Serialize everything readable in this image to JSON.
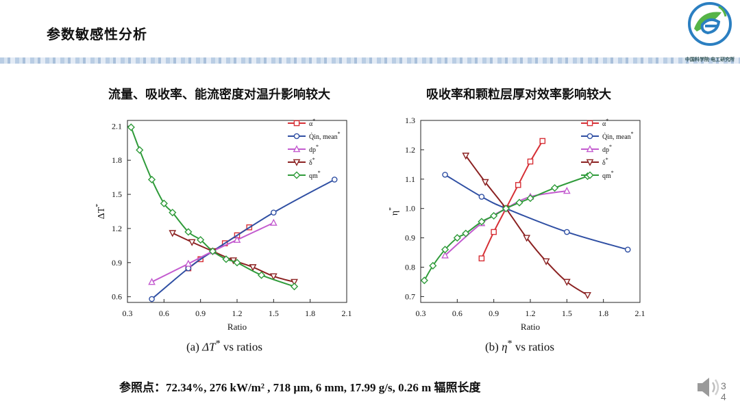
{
  "slide": {
    "title": "参数敏感性分析",
    "org": "中国科学院·电工研究所",
    "left_subtitle": "流量、吸收率、能流密度对温升影响较大",
    "right_subtitle": "吸收率和颗粒层厚对效率影响较大",
    "reference": "参照点：72.34%, 276 kW/m² , 718 μm, 6 mm, 17.99 g/s, 0.26 m  辐照长度",
    "page_top": "3",
    "page_bottom": "4"
  },
  "colors": {
    "alpha": "#d62f35",
    "Q": "#2f4fa3",
    "dp": "#c35bcf",
    "delta": "#8b2121",
    "qm": "#2f9b3a"
  },
  "legend_labels": [
    "α",
    "Q̇in, mean",
    "dp",
    "δ",
    "qm"
  ],
  "chart_data": [
    {
      "type": "line",
      "caption_prefix": "(a)  ",
      "caption_symbol": "ΔT",
      "caption_suffix": "  vs ratios",
      "xlabel": "Ratio",
      "ylabel": "ΔT",
      "xlim": [
        0.3,
        2.1
      ],
      "ylim": [
        0.55,
        2.15
      ],
      "xticks": [
        "0.3",
        "0.6",
        "0.9",
        "1.2",
        "1.5",
        "1.8",
        "2.1"
      ],
      "yticks": [
        "0.6",
        "0.9",
        "1.2",
        "1.5",
        "1.8",
        "2.1"
      ],
      "legend_position": "top-right",
      "series": [
        {
          "key": "alpha",
          "marker": "square",
          "x": [
            0.8,
            0.9,
            1.0,
            1.1,
            1.2,
            1.3
          ],
          "y": [
            0.85,
            0.93,
            1.0,
            1.07,
            1.14,
            1.21
          ]
        },
        {
          "key": "Q",
          "marker": "circle",
          "x": [
            0.5,
            0.8,
            1.0,
            1.5,
            2.0
          ],
          "y": [
            0.58,
            0.85,
            1.0,
            1.34,
            1.63
          ]
        },
        {
          "key": "dp",
          "marker": "triangle-up",
          "x": [
            0.5,
            0.8,
            1.0,
            1.2,
            1.5
          ],
          "y": [
            0.73,
            0.89,
            1.0,
            1.1,
            1.25
          ]
        },
        {
          "key": "delta",
          "marker": "triangle-down",
          "x": [
            0.67,
            0.83,
            1.0,
            1.17,
            1.33,
            1.5,
            1.67
          ],
          "y": [
            1.16,
            1.08,
            1.0,
            0.92,
            0.86,
            0.78,
            0.73
          ]
        },
        {
          "key": "qm",
          "marker": "diamond",
          "x": [
            0.33,
            0.4,
            0.5,
            0.6,
            0.67,
            0.8,
            0.9,
            1.0,
            1.11,
            1.2,
            1.4,
            1.67
          ],
          "y": [
            2.09,
            1.89,
            1.63,
            1.42,
            1.34,
            1.17,
            1.1,
            1.0,
            0.93,
            0.9,
            0.79,
            0.69
          ]
        }
      ]
    },
    {
      "type": "line",
      "caption_prefix": "(b)  ",
      "caption_symbol": "η",
      "caption_suffix": "  vs ratios",
      "xlabel": "Ratio",
      "ylabel": "η",
      "xlim": [
        0.3,
        2.1
      ],
      "ylim": [
        0.68,
        1.3
      ],
      "xticks": [
        "0.3",
        "0.6",
        "0.9",
        "1.2",
        "1.5",
        "1.8",
        "2.1"
      ],
      "yticks": [
        "0.7",
        "0.8",
        "0.9",
        "1.0",
        "1.1",
        "1.2",
        "1.3"
      ],
      "legend_position": "top-right",
      "series": [
        {
          "key": "alpha",
          "marker": "square",
          "x": [
            0.8,
            0.9,
            1.0,
            1.1,
            1.2,
            1.3
          ],
          "y": [
            0.83,
            0.92,
            1.0,
            1.08,
            1.16,
            1.23
          ]
        },
        {
          "key": "Q",
          "marker": "circle",
          "x": [
            0.5,
            0.8,
            1.0,
            1.5,
            2.0
          ],
          "y": [
            1.115,
            1.04,
            1.0,
            0.92,
            0.86
          ]
        },
        {
          "key": "dp",
          "marker": "triangle-up",
          "x": [
            0.5,
            0.8,
            1.0,
            1.2,
            1.5
          ],
          "y": [
            0.84,
            0.95,
            1.0,
            1.04,
            1.06
          ]
        },
        {
          "key": "delta",
          "marker": "triangle-down",
          "x": [
            0.67,
            0.83,
            1.0,
            1.17,
            1.33,
            1.5,
            1.67
          ],
          "y": [
            1.18,
            1.09,
            1.0,
            0.9,
            0.82,
            0.75,
            0.705
          ]
        },
        {
          "key": "qm",
          "marker": "diamond",
          "x": [
            0.33,
            0.4,
            0.5,
            0.6,
            0.67,
            0.8,
            0.9,
            1.0,
            1.11,
            1.2,
            1.4,
            1.67
          ],
          "y": [
            0.755,
            0.805,
            0.86,
            0.9,
            0.915,
            0.955,
            0.975,
            1.0,
            1.02,
            1.035,
            1.07,
            1.11
          ]
        }
      ]
    }
  ]
}
